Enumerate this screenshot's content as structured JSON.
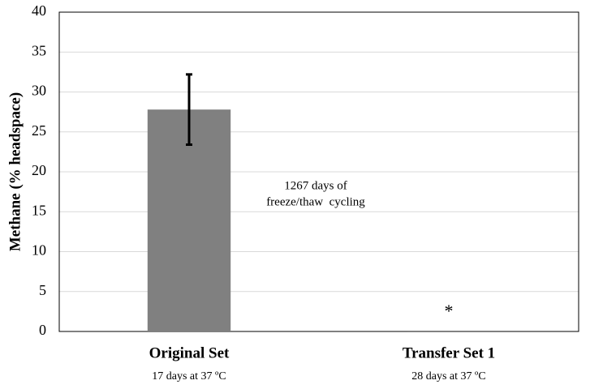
{
  "chart_data": {
    "type": "bar",
    "y_label": "Methane (% headspace)",
    "categories": [
      "Original Set",
      "Transfer Set 1"
    ],
    "category_sublabels": [
      "17 days at 37 ºC",
      "28 days at 37 ºC"
    ],
    "values": [
      27.8,
      0.1
    ],
    "errors": [
      4.4,
      null
    ],
    "color": "#808080",
    "ylim": [
      0,
      40
    ],
    "yticks": [
      0,
      5,
      10,
      15,
      20,
      25,
      30,
      35,
      40
    ],
    "grid": true,
    "annotation": [
      "1267 days of",
      "freeze/thaw  cycling"
    ],
    "star_label": "*"
  }
}
